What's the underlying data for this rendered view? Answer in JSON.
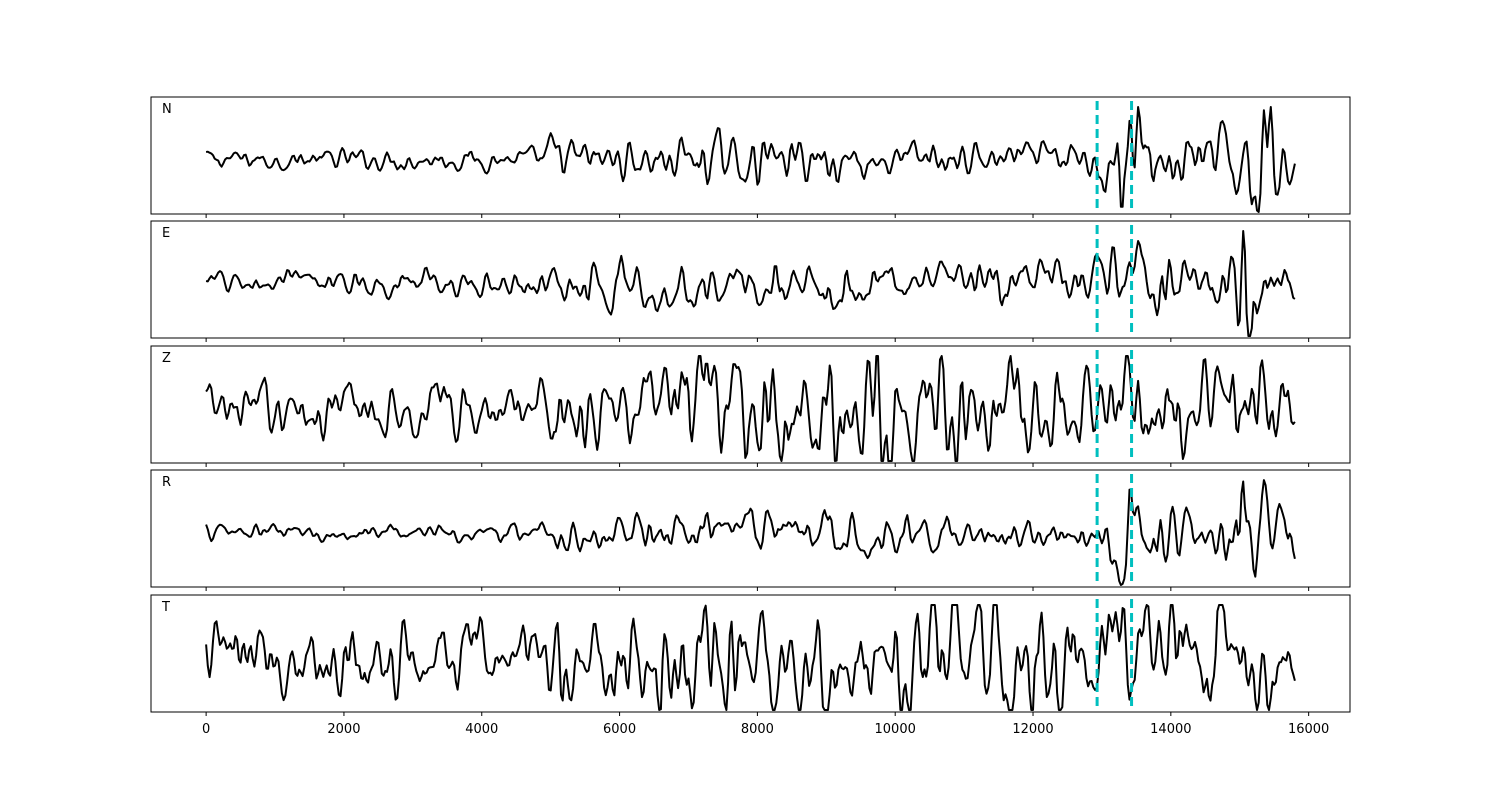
{
  "chart_data": {
    "type": "line",
    "xlim": [
      -800,
      16600
    ],
    "x_ticks": [
      0,
      2000,
      4000,
      6000,
      8000,
      10000,
      12000,
      14000,
      16000
    ],
    "x_tick_labels": [
      "0",
      "2000",
      "4000",
      "6000",
      "8000",
      "10000",
      "12000",
      "14000",
      "16000"
    ],
    "n_samples": 15800,
    "grid": false,
    "pick_lines": {
      "color": "#00bfbf",
      "style": "dashed",
      "x": [
        12930,
        13430
      ]
    },
    "trace_color": "#000000",
    "panels": [
      {
        "label": "N",
        "base_amplitude": 0.12,
        "envelope": [
          [
            0,
            0.12
          ],
          [
            4800,
            0.12
          ],
          [
            5000,
            0.3
          ],
          [
            5500,
            0.22
          ],
          [
            6500,
            0.22
          ],
          [
            7200,
            0.3
          ],
          [
            9000,
            0.25
          ],
          [
            12900,
            0.2
          ],
          [
            13200,
            0.6
          ],
          [
            13450,
            0.65
          ],
          [
            14900,
            0.3
          ],
          [
            15050,
            0.9
          ],
          [
            15300,
            0.7
          ],
          [
            15800,
            0.4
          ]
        ],
        "events": [
          [
            13400,
            0.65
          ],
          [
            13280,
            -0.55
          ],
          [
            15050,
            0.95
          ],
          [
            15130,
            -0.7
          ],
          [
            15350,
            0.75
          ]
        ]
      },
      {
        "label": "E",
        "base_amplitude": 0.15,
        "envelope": [
          [
            0,
            0.15
          ],
          [
            4800,
            0.15
          ],
          [
            5000,
            0.22
          ],
          [
            6400,
            0.3
          ],
          [
            7800,
            0.28
          ],
          [
            12000,
            0.25
          ],
          [
            12900,
            0.3
          ],
          [
            13300,
            0.55
          ],
          [
            14900,
            0.3
          ],
          [
            15050,
            0.9
          ],
          [
            15300,
            0.55
          ],
          [
            15800,
            0.3
          ]
        ],
        "events": [
          [
            13270,
            -0.7
          ],
          [
            15050,
            0.95
          ],
          [
            15140,
            -0.65
          ]
        ]
      },
      {
        "label": "Z",
        "base_amplitude": 0.3,
        "envelope": [
          [
            0,
            0.3
          ],
          [
            4800,
            0.35
          ],
          [
            4900,
            0.75
          ],
          [
            5000,
            0.45
          ],
          [
            6500,
            0.45
          ],
          [
            6650,
            0.9
          ],
          [
            7000,
            0.7
          ],
          [
            8000,
            0.7
          ],
          [
            8600,
            0.85
          ],
          [
            10000,
            0.8
          ],
          [
            12000,
            0.6
          ],
          [
            15800,
            0.55
          ]
        ],
        "events": [
          [
            4900,
            0.6
          ],
          [
            6730,
            0.9
          ],
          [
            8600,
            -0.9
          ],
          [
            10000,
            0.85
          ]
        ]
      },
      {
        "label": "R",
        "base_amplitude": 0.1,
        "envelope": [
          [
            0,
            0.1
          ],
          [
            4800,
            0.12
          ],
          [
            5000,
            0.25
          ],
          [
            6800,
            0.22
          ],
          [
            8000,
            0.3
          ],
          [
            12900,
            0.18
          ],
          [
            13300,
            0.6
          ],
          [
            14900,
            0.3
          ],
          [
            15050,
            0.9
          ],
          [
            15300,
            0.6
          ],
          [
            15800,
            0.4
          ]
        ],
        "events": [
          [
            13400,
            0.6
          ],
          [
            13270,
            -0.6
          ],
          [
            15050,
            0.95
          ],
          [
            15110,
            -0.7
          ],
          [
            15350,
            0.65
          ]
        ]
      },
      {
        "label": "T",
        "base_amplitude": 0.4,
        "envelope": [
          [
            0,
            0.4
          ],
          [
            4800,
            0.45
          ],
          [
            5000,
            0.65
          ],
          [
            6500,
            0.65
          ],
          [
            6650,
            0.85
          ],
          [
            8000,
            0.65
          ],
          [
            11700,
            0.75
          ],
          [
            12900,
            0.65
          ],
          [
            13300,
            0.85
          ],
          [
            15800,
            0.6
          ]
        ],
        "events": [
          [
            6600,
            -0.8
          ],
          [
            11650,
            -0.9
          ],
          [
            11980,
            -0.9
          ],
          [
            13270,
            0.9
          ]
        ]
      }
    ]
  }
}
